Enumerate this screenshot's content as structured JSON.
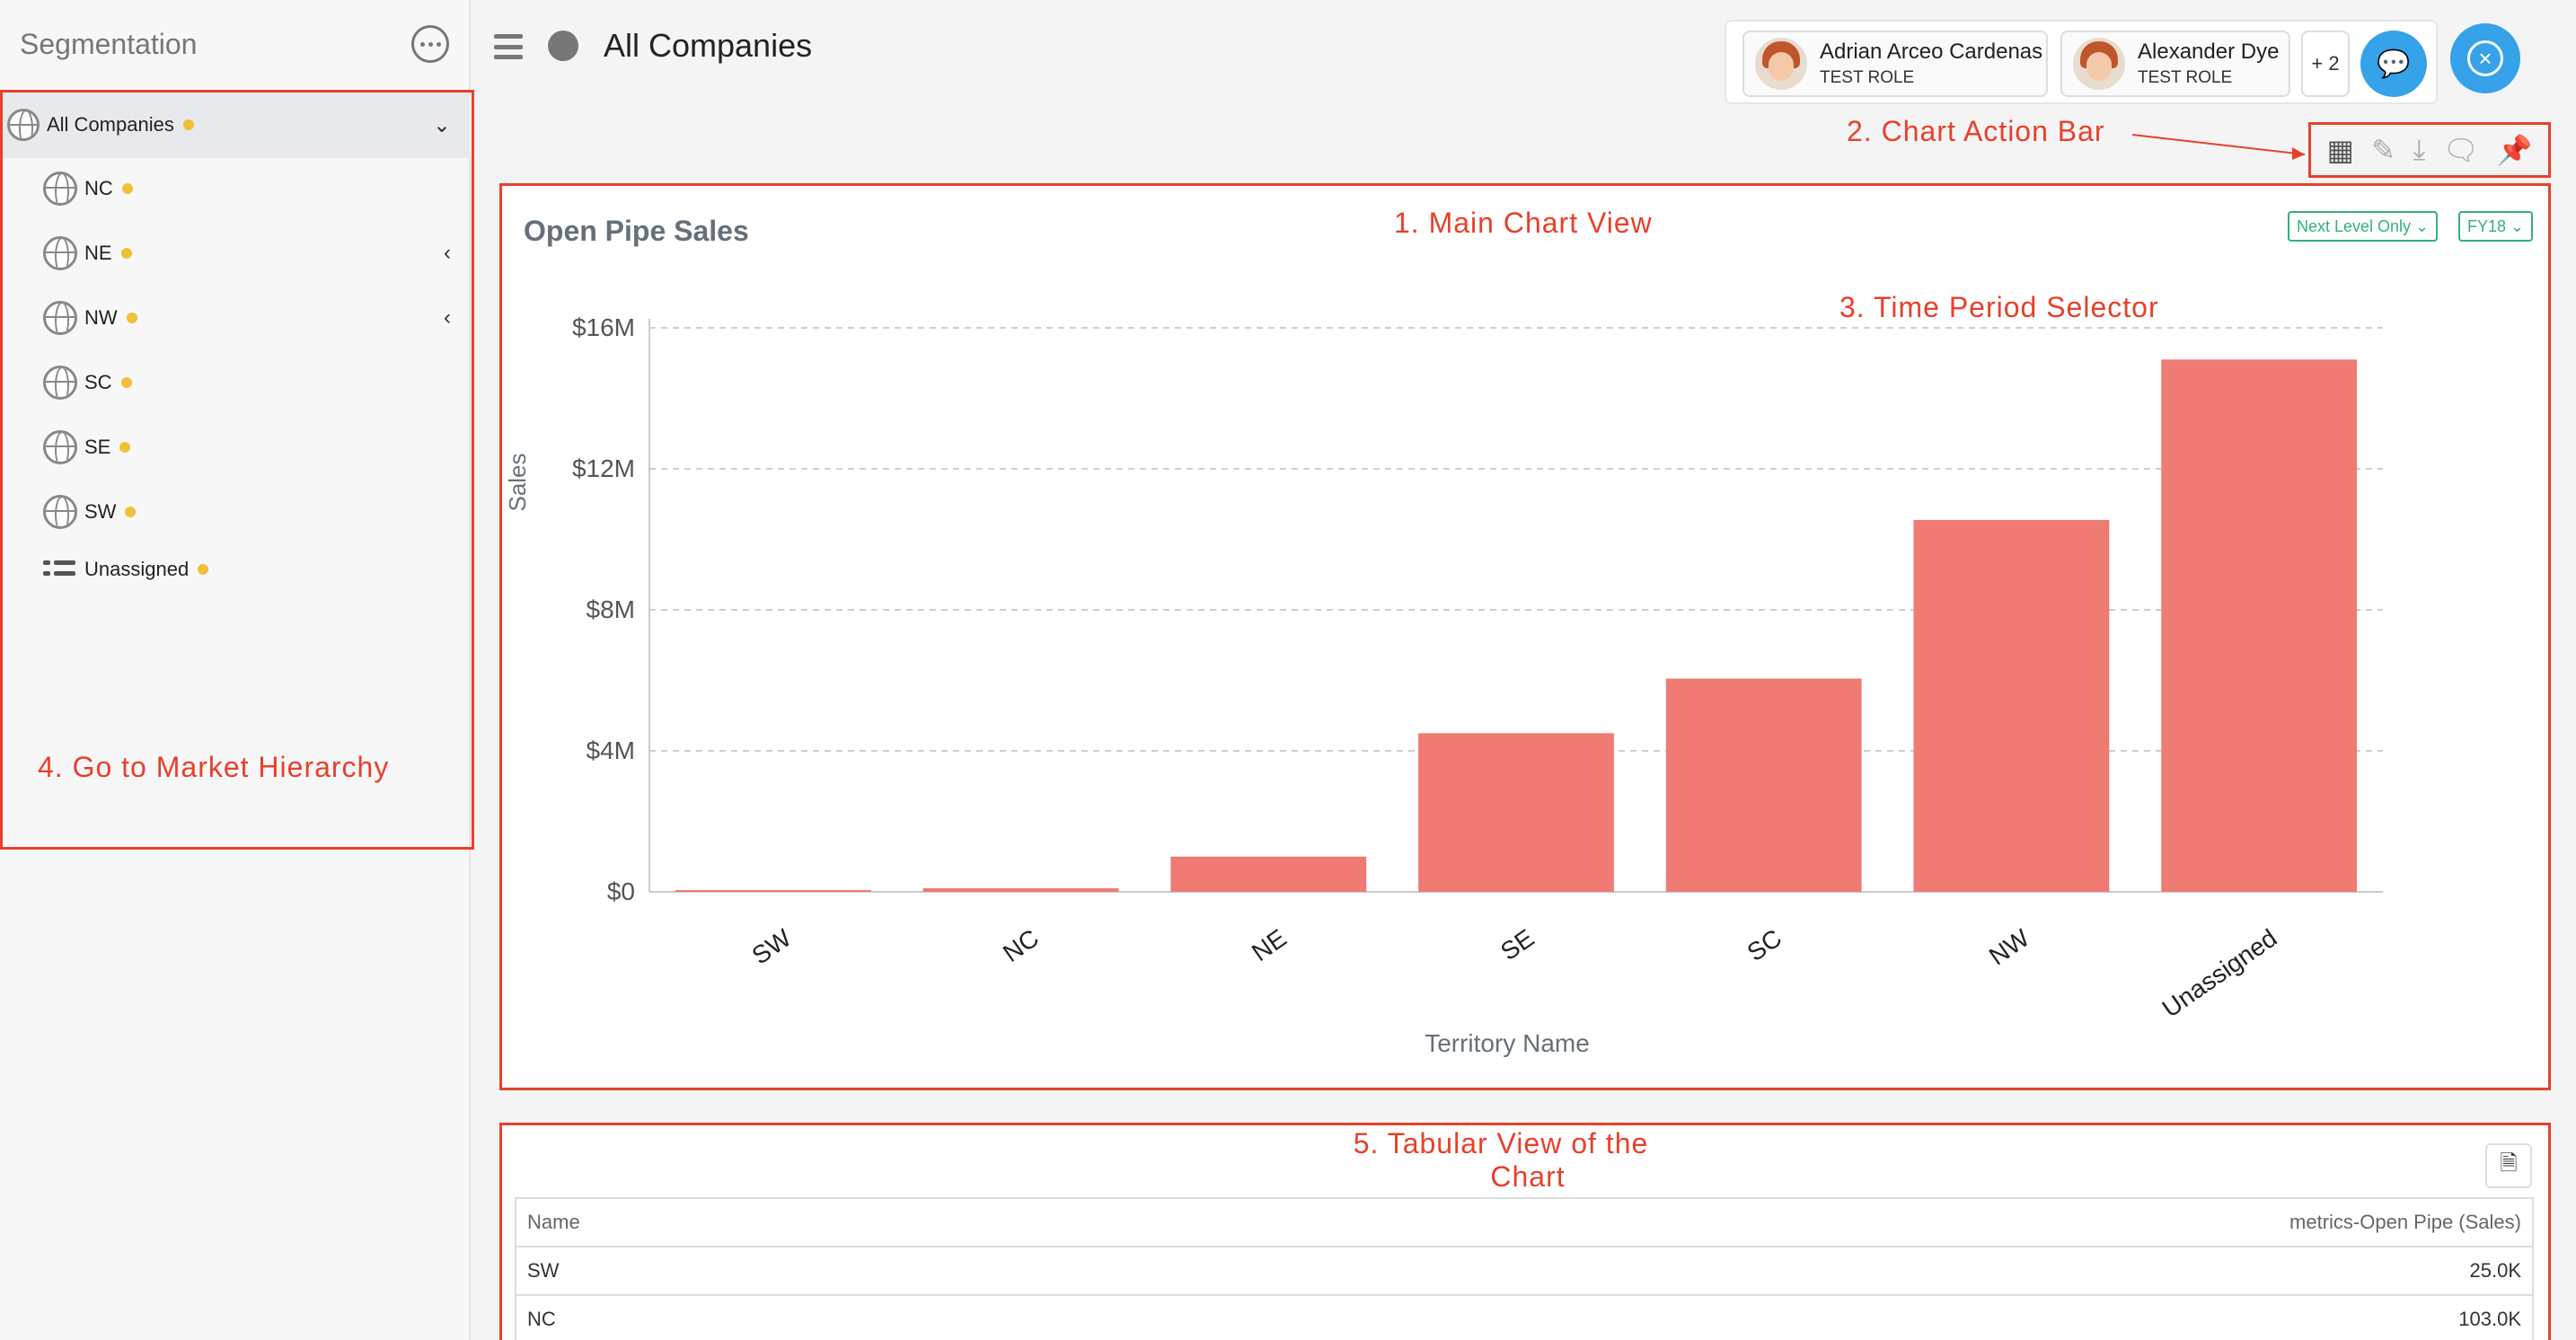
{
  "sidebar": {
    "title": "Segmentation",
    "root": {
      "label": "All Companies"
    },
    "items": [
      {
        "label": "NC",
        "has_children": false
      },
      {
        "label": "NE",
        "has_children": true
      },
      {
        "label": "NW",
        "has_children": true
      },
      {
        "label": "SC",
        "has_children": false
      },
      {
        "label": "SE",
        "has_children": false
      },
      {
        "label": "SW",
        "has_children": false
      },
      {
        "label": "Unassigned",
        "has_children": false
      }
    ]
  },
  "header": {
    "title": "All Companies",
    "people": [
      {
        "name": "Adrian Arceo Cardenas",
        "role": "TEST ROLE"
      },
      {
        "name": "Alexander Dye",
        "role": "TEST ROLE"
      }
    ],
    "more_count": "+ 2"
  },
  "chart_panel": {
    "title": "Open Pipe Sales",
    "level_filter": "Next Level Only ⌄",
    "period": "FY18 ⌄"
  },
  "chart_data": {
    "type": "bar",
    "title": "Open Pipe Sales",
    "xlabel": "Territory Name",
    "ylabel": "Sales",
    "categories": [
      "SW",
      "NC",
      "NE",
      "SE",
      "SC",
      "NW",
      "Unassigned"
    ],
    "values": [
      25000,
      103000,
      1000000,
      4500000,
      6050000,
      10550000,
      15100000
    ],
    "yticks": [
      "$0",
      "$4M",
      "$8M",
      "$12M",
      "$16M"
    ],
    "ylim": [
      0,
      16000000
    ],
    "grid": true,
    "color": "#f07a74"
  },
  "table": {
    "headers": [
      "Name",
      "metrics-Open Pipe (Sales)"
    ],
    "rows": [
      [
        "SW",
        "25.0K"
      ],
      [
        "NC",
        "103.0K"
      ]
    ]
  },
  "annotations": {
    "main_chart": "1. Main Chart View",
    "action_bar": "2. Chart Action Bar",
    "period_selector": "3. Time Period Selector",
    "hierarchy": "4. Go to Market Hierarchy",
    "tabular_line1": "5. Tabular View of the",
    "tabular_line2": "Chart"
  }
}
